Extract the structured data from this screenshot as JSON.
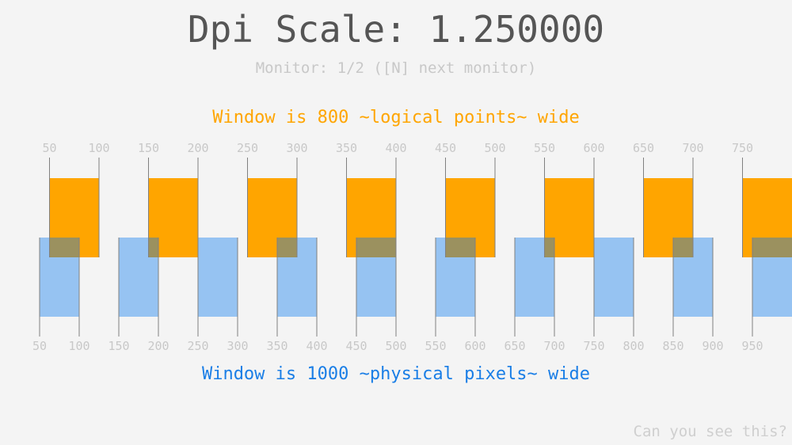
{
  "title": "Dpi Scale: 1.250000",
  "monitor_text": "Monitor: 1/2 ([N] next monitor)",
  "logical_text": "Window is 800 ~logical points~ wide",
  "physical_text": "Window is 1000 ~physical pixels~ wide",
  "hint_text": "Can you see this?",
  "dpi_scale": 1.25,
  "logical_width": 800,
  "physical_width": 1000,
  "logical_ticks": [
    50,
    100,
    150,
    200,
    250,
    300,
    350,
    400,
    450,
    500,
    550,
    600,
    650,
    700,
    750
  ],
  "physical_ticks": [
    50,
    100,
    150,
    200,
    250,
    300,
    350,
    400,
    450,
    500,
    550,
    600,
    650,
    700,
    750,
    800,
    850,
    900,
    950
  ],
  "colors": {
    "logical": "#ffa500",
    "physical": "#96c3f2",
    "overlap": "#9b915f",
    "line": "#808080",
    "tick_label": "#c8c8c8"
  }
}
